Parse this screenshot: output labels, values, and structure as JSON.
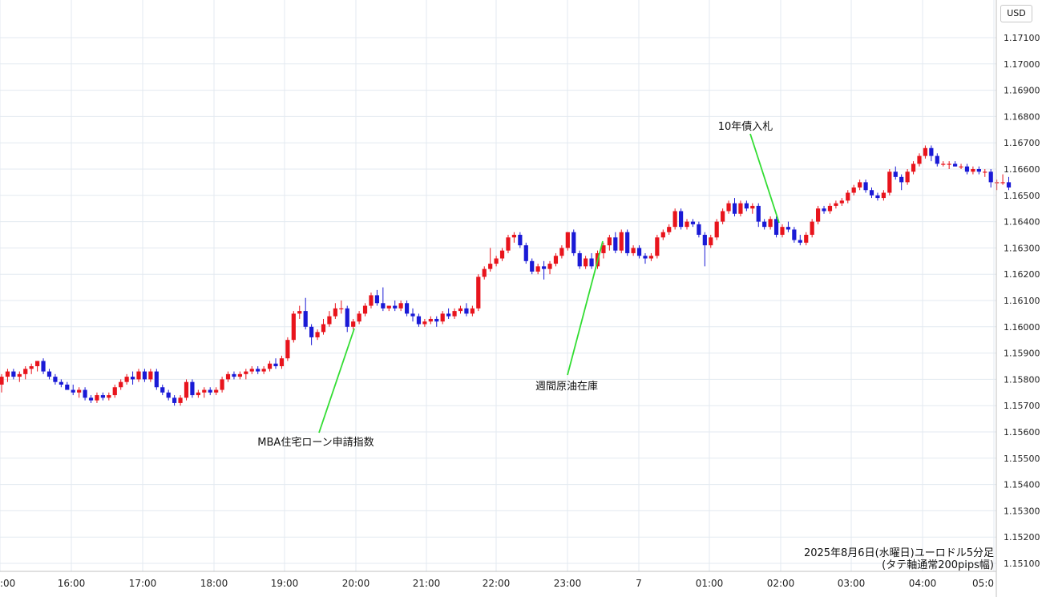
{
  "chart_data": {
    "type": "candlestick",
    "currency": "USD",
    "y_axis": {
      "range": [
        1.151,
        1.172
      ],
      "ticks": [
        "1.15100",
        "1.15200",
        "1.15300",
        "1.15400",
        "1.15500",
        "1.15600",
        "1.15700",
        "1.15800",
        "1.15900",
        "1.16000",
        "1.16100",
        "1.16200",
        "1.16300",
        "1.16400",
        "1.16500",
        "1.16600",
        "1.16700",
        "1.16800",
        "1.16900",
        "1.17000",
        "1.17100"
      ]
    },
    "x_axis": {
      "ticks": [
        ":00",
        "16:00",
        "17:00",
        "18:00",
        "19:00",
        "20:00",
        "21:00",
        "22:00",
        "23:00",
        "7",
        "01:00",
        "02:00",
        "03:00",
        "04:00",
        "05:0"
      ]
    },
    "caption": {
      "line1": "2025年8月6日(水曜日)ユーロドル5分足",
      "line2": "(タテ軸通常200pips幅)"
    },
    "annotations": [
      {
        "label": "MBA住宅ローン申請指数",
        "time": "20:00",
        "price": 1.1599
      },
      {
        "label": "週間原油在庫",
        "time": "23:30",
        "price": 1.1629
      },
      {
        "label": "10年債入札",
        "time": "02:00",
        "price": 1.164
      }
    ],
    "colors": {
      "up": "#e8141c",
      "down": "#1a1ad6",
      "annotation_line": "#33dd33",
      "grid": "#e3eaf0"
    },
    "candles": [
      [
        1.1578,
        1.1582,
        1.1575,
        1.1581
      ],
      [
        1.1581,
        1.1584,
        1.1579,
        1.1583
      ],
      [
        1.1583,
        1.1584,
        1.158,
        1.1581
      ],
      [
        1.1581,
        1.1583,
        1.1579,
        1.1582
      ],
      [
        1.1582,
        1.1585,
        1.158,
        1.1584
      ],
      [
        1.1584,
        1.1586,
        1.1582,
        1.1585
      ],
      [
        1.1585,
        1.1587,
        1.1583,
        1.1587
      ],
      [
        1.1587,
        1.1588,
        1.1582,
        1.1583
      ],
      [
        1.1583,
        1.1584,
        1.158,
        1.1581
      ],
      [
        1.1581,
        1.1582,
        1.1578,
        1.1579
      ],
      [
        1.1579,
        1.158,
        1.1577,
        1.1578
      ],
      [
        1.1578,
        1.1579,
        1.1576,
        1.1576
      ],
      [
        1.1576,
        1.1578,
        1.1574,
        1.1575
      ],
      [
        1.1575,
        1.1577,
        1.1573,
        1.1576
      ],
      [
        1.1576,
        1.1577,
        1.1572,
        1.1573
      ],
      [
        1.1573,
        1.1574,
        1.1571,
        1.1572
      ],
      [
        1.1572,
        1.1575,
        1.1571,
        1.1574
      ],
      [
        1.1574,
        1.1575,
        1.1572,
        1.1573
      ],
      [
        1.1573,
        1.1575,
        1.1572,
        1.1574
      ],
      [
        1.1574,
        1.1578,
        1.1573,
        1.1577
      ],
      [
        1.1577,
        1.158,
        1.1576,
        1.1579
      ],
      [
        1.1579,
        1.1582,
        1.1578,
        1.1581
      ],
      [
        1.1581,
        1.1583,
        1.1578,
        1.158
      ],
      [
        1.158,
        1.1584,
        1.1579,
        1.1583
      ],
      [
        1.1583,
        1.1584,
        1.1579,
        1.158
      ],
      [
        1.158,
        1.1584,
        1.1579,
        1.1583
      ],
      [
        1.1583,
        1.1584,
        1.1576,
        1.1577
      ],
      [
        1.1577,
        1.1578,
        1.1574,
        1.1575
      ],
      [
        1.1575,
        1.1576,
        1.1572,
        1.1573
      ],
      [
        1.1573,
        1.1574,
        1.157,
        1.1571
      ],
      [
        1.1571,
        1.1574,
        1.157,
        1.1573
      ],
      [
        1.1573,
        1.158,
        1.1572,
        1.1579
      ],
      [
        1.1579,
        1.158,
        1.1573,
        1.1574
      ],
      [
        1.1574,
        1.1576,
        1.1573,
        1.1575
      ],
      [
        1.1575,
        1.1577,
        1.1573,
        1.1576
      ],
      [
        1.1576,
        1.1577,
        1.1574,
        1.1575
      ],
      [
        1.1575,
        1.1577,
        1.1574,
        1.1576
      ],
      [
        1.1576,
        1.1581,
        1.1575,
        1.158
      ],
      [
        1.158,
        1.1583,
        1.1579,
        1.1582
      ],
      [
        1.1582,
        1.1583,
        1.158,
        1.1581
      ],
      [
        1.1581,
        1.1583,
        1.158,
        1.1582
      ],
      [
        1.1582,
        1.1584,
        1.158,
        1.1583
      ],
      [
        1.1583,
        1.1585,
        1.1582,
        1.1584
      ],
      [
        1.1584,
        1.1585,
        1.1582,
        1.1583
      ],
      [
        1.1583,
        1.1585,
        1.1582,
        1.1584
      ],
      [
        1.1584,
        1.1587,
        1.1583,
        1.1586
      ],
      [
        1.1586,
        1.1588,
        1.1584,
        1.1585
      ],
      [
        1.1585,
        1.1589,
        1.1584,
        1.1588
      ],
      [
        1.1588,
        1.1596,
        1.1587,
        1.1595
      ],
      [
        1.1595,
        1.1606,
        1.1594,
        1.1605
      ],
      [
        1.1605,
        1.1608,
        1.1603,
        1.1606
      ],
      [
        1.1606,
        1.1611,
        1.1599,
        1.16
      ],
      [
        1.16,
        1.1601,
        1.1593,
        1.1596
      ],
      [
        1.1596,
        1.1599,
        1.1595,
        1.1598
      ],
      [
        1.1598,
        1.1603,
        1.1597,
        1.1601
      ],
      [
        1.1601,
        1.1606,
        1.16,
        1.1604
      ],
      [
        1.1604,
        1.1609,
        1.1603,
        1.1607
      ],
      [
        1.1607,
        1.161,
        1.1605,
        1.1607
      ],
      [
        1.1607,
        1.1608,
        1.1598,
        1.16
      ],
      [
        1.16,
        1.1603,
        1.1599,
        1.1602
      ],
      [
        1.1602,
        1.1606,
        1.1601,
        1.1605
      ],
      [
        1.1605,
        1.1609,
        1.1604,
        1.1608
      ],
      [
        1.1608,
        1.1613,
        1.1607,
        1.1612
      ],
      [
        1.1612,
        1.1614,
        1.1608,
        1.1609
      ],
      [
        1.1609,
        1.1615,
        1.1606,
        1.1607
      ],
      [
        1.1607,
        1.1608,
        1.1606,
        1.1608
      ],
      [
        1.1608,
        1.161,
        1.1606,
        1.1607
      ],
      [
        1.1607,
        1.161,
        1.1606,
        1.1609
      ],
      [
        1.1609,
        1.161,
        1.1604,
        1.1605
      ],
      [
        1.1605,
        1.1607,
        1.1602,
        1.1604
      ],
      [
        1.1604,
        1.1605,
        1.16,
        1.1601
      ],
      [
        1.1601,
        1.1603,
        1.16,
        1.1602
      ],
      [
        1.1602,
        1.1604,
        1.1601,
        1.1603
      ],
      [
        1.1603,
        1.1604,
        1.16,
        1.1602
      ],
      [
        1.1602,
        1.1606,
        1.1601,
        1.1605
      ],
      [
        1.1605,
        1.1607,
        1.1603,
        1.1604
      ],
      [
        1.1604,
        1.1607,
        1.1603,
        1.1606
      ],
      [
        1.1606,
        1.1608,
        1.1605,
        1.1607
      ],
      [
        1.1607,
        1.1609,
        1.1604,
        1.1605
      ],
      [
        1.1605,
        1.1608,
        1.1604,
        1.1607
      ],
      [
        1.1607,
        1.162,
        1.1606,
        1.1619
      ],
      [
        1.1619,
        1.1623,
        1.1618,
        1.1622
      ],
      [
        1.1622,
        1.163,
        1.1621,
        1.1624
      ],
      [
        1.1624,
        1.1627,
        1.1623,
        1.1626
      ],
      [
        1.1626,
        1.163,
        1.1625,
        1.1629
      ],
      [
        1.1629,
        1.1635,
        1.1628,
        1.1634
      ],
      [
        1.1634,
        1.1636,
        1.1632,
        1.1635
      ],
      [
        1.1635,
        1.1636,
        1.163,
        1.1631
      ],
      [
        1.1631,
        1.1632,
        1.1624,
        1.1625
      ],
      [
        1.1625,
        1.1626,
        1.162,
        1.1621
      ],
      [
        1.1621,
        1.1624,
        1.162,
        1.1623
      ],
      [
        1.1623,
        1.1625,
        1.1618,
        1.1622
      ],
      [
        1.1622,
        1.1625,
        1.162,
        1.1624
      ],
      [
        1.1624,
        1.1628,
        1.1623,
        1.1627
      ],
      [
        1.1627,
        1.1631,
        1.1626,
        1.163
      ],
      [
        1.163,
        1.1636,
        1.1629,
        1.1636
      ],
      [
        1.1636,
        1.1637,
        1.1627,
        1.1628
      ],
      [
        1.1628,
        1.1629,
        1.1622,
        1.1623
      ],
      [
        1.1623,
        1.1627,
        1.1622,
        1.1626
      ],
      [
        1.1626,
        1.1628,
        1.1622,
        1.1623
      ],
      [
        1.1623,
        1.1629,
        1.1622,
        1.1628
      ],
      [
        1.1628,
        1.1632,
        1.1626,
        1.1631
      ],
      [
        1.1631,
        1.1635,
        1.1629,
        1.1634
      ],
      [
        1.1634,
        1.1636,
        1.1628,
        1.1629
      ],
      [
        1.1629,
        1.1637,
        1.1628,
        1.1636
      ],
      [
        1.1636,
        1.1637,
        1.1627,
        1.1628
      ],
      [
        1.1628,
        1.1631,
        1.1627,
        1.163
      ],
      [
        1.163,
        1.1631,
        1.1626,
        1.1627
      ],
      [
        1.1627,
        1.1628,
        1.1624,
        1.1626
      ],
      [
        1.1626,
        1.1628,
        1.1625,
        1.1627
      ],
      [
        1.1627,
        1.1635,
        1.1626,
        1.1634
      ],
      [
        1.1634,
        1.1637,
        1.1633,
        1.1636
      ],
      [
        1.1636,
        1.1639,
        1.1635,
        1.1638
      ],
      [
        1.1638,
        1.1645,
        1.1637,
        1.1644
      ],
      [
        1.1644,
        1.1645,
        1.1637,
        1.1638
      ],
      [
        1.1638,
        1.1641,
        1.1637,
        1.164
      ],
      [
        1.164,
        1.1641,
        1.1638,
        1.1639
      ],
      [
        1.1639,
        1.164,
        1.1634,
        1.1635
      ],
      [
        1.1635,
        1.1636,
        1.1623,
        1.1631
      ],
      [
        1.1631,
        1.1635,
        1.163,
        1.1634
      ],
      [
        1.1634,
        1.1641,
        1.1633,
        1.164
      ],
      [
        1.164,
        1.1645,
        1.1639,
        1.1644
      ],
      [
        1.1644,
        1.1648,
        1.1643,
        1.1647
      ],
      [
        1.1647,
        1.1649,
        1.1642,
        1.1643
      ],
      [
        1.1643,
        1.1648,
        1.1642,
        1.1647
      ],
      [
        1.1647,
        1.1648,
        1.1644,
        1.1645
      ],
      [
        1.1645,
        1.1647,
        1.1643,
        1.1646
      ],
      [
        1.1646,
        1.1647,
        1.1638,
        1.164
      ],
      [
        1.164,
        1.1641,
        1.1637,
        1.1638
      ],
      [
        1.1638,
        1.1642,
        1.1637,
        1.1641
      ],
      [
        1.1641,
        1.1642,
        1.1634,
        1.1635
      ],
      [
        1.1635,
        1.1639,
        1.1634,
        1.1638
      ],
      [
        1.1638,
        1.164,
        1.1636,
        1.1637
      ],
      [
        1.1637,
        1.1638,
        1.1632,
        1.1633
      ],
      [
        1.1633,
        1.1635,
        1.1631,
        1.1632
      ],
      [
        1.1632,
        1.1636,
        1.1631,
        1.1635
      ],
      [
        1.1635,
        1.1641,
        1.1634,
        1.164
      ],
      [
        1.164,
        1.1646,
        1.1639,
        1.1645
      ],
      [
        1.1645,
        1.1646,
        1.1643,
        1.1644
      ],
      [
        1.1644,
        1.1647,
        1.1643,
        1.1646
      ],
      [
        1.1646,
        1.1648,
        1.1645,
        1.1647
      ],
      [
        1.1647,
        1.1649,
        1.1646,
        1.1648
      ],
      [
        1.1648,
        1.1652,
        1.1647,
        1.1651
      ],
      [
        1.1651,
        1.1654,
        1.165,
        1.1653
      ],
      [
        1.1653,
        1.1656,
        1.1652,
        1.1655
      ],
      [
        1.1655,
        1.1656,
        1.1651,
        1.1652
      ],
      [
        1.1652,
        1.1653,
        1.1649,
        1.165
      ],
      [
        1.165,
        1.1651,
        1.1648,
        1.1649
      ],
      [
        1.1649,
        1.1652,
        1.1648,
        1.1651
      ],
      [
        1.1651,
        1.166,
        1.165,
        1.1659
      ],
      [
        1.1659,
        1.1661,
        1.1656,
        1.1657
      ],
      [
        1.1657,
        1.1658,
        1.1652,
        1.1655
      ],
      [
        1.1655,
        1.166,
        1.1654,
        1.1659
      ],
      [
        1.1659,
        1.1663,
        1.1658,
        1.1662
      ],
      [
        1.1662,
        1.1666,
        1.1661,
        1.1665
      ],
      [
        1.1665,
        1.1669,
        1.1664,
        1.1668
      ],
      [
        1.1668,
        1.1669,
        1.1663,
        1.1665
      ],
      [
        1.1665,
        1.1666,
        1.1661,
        1.1662
      ],
      [
        1.1662,
        1.1663,
        1.1661,
        1.1662
      ],
      [
        1.1662,
        1.1663,
        1.166,
        1.1662
      ],
      [
        1.1662,
        1.1663,
        1.1661,
        1.1661
      ],
      [
        1.1661,
        1.1662,
        1.166,
        1.1661
      ],
      [
        1.1661,
        1.1662,
        1.1658,
        1.1659
      ],
      [
        1.1659,
        1.1661,
        1.1658,
        1.166
      ],
      [
        1.166,
        1.1661,
        1.1658,
        1.1659
      ],
      [
        1.1659,
        1.166,
        1.1657,
        1.1659
      ],
      [
        1.1659,
        1.166,
        1.1653,
        1.1655
      ],
      [
        1.1655,
        1.1656,
        1.1652,
        1.1655
      ],
      [
        1.1655,
        1.1658,
        1.1654,
        1.1655
      ],
      [
        1.1655,
        1.1657,
        1.1652,
        1.1653
      ]
    ]
  }
}
